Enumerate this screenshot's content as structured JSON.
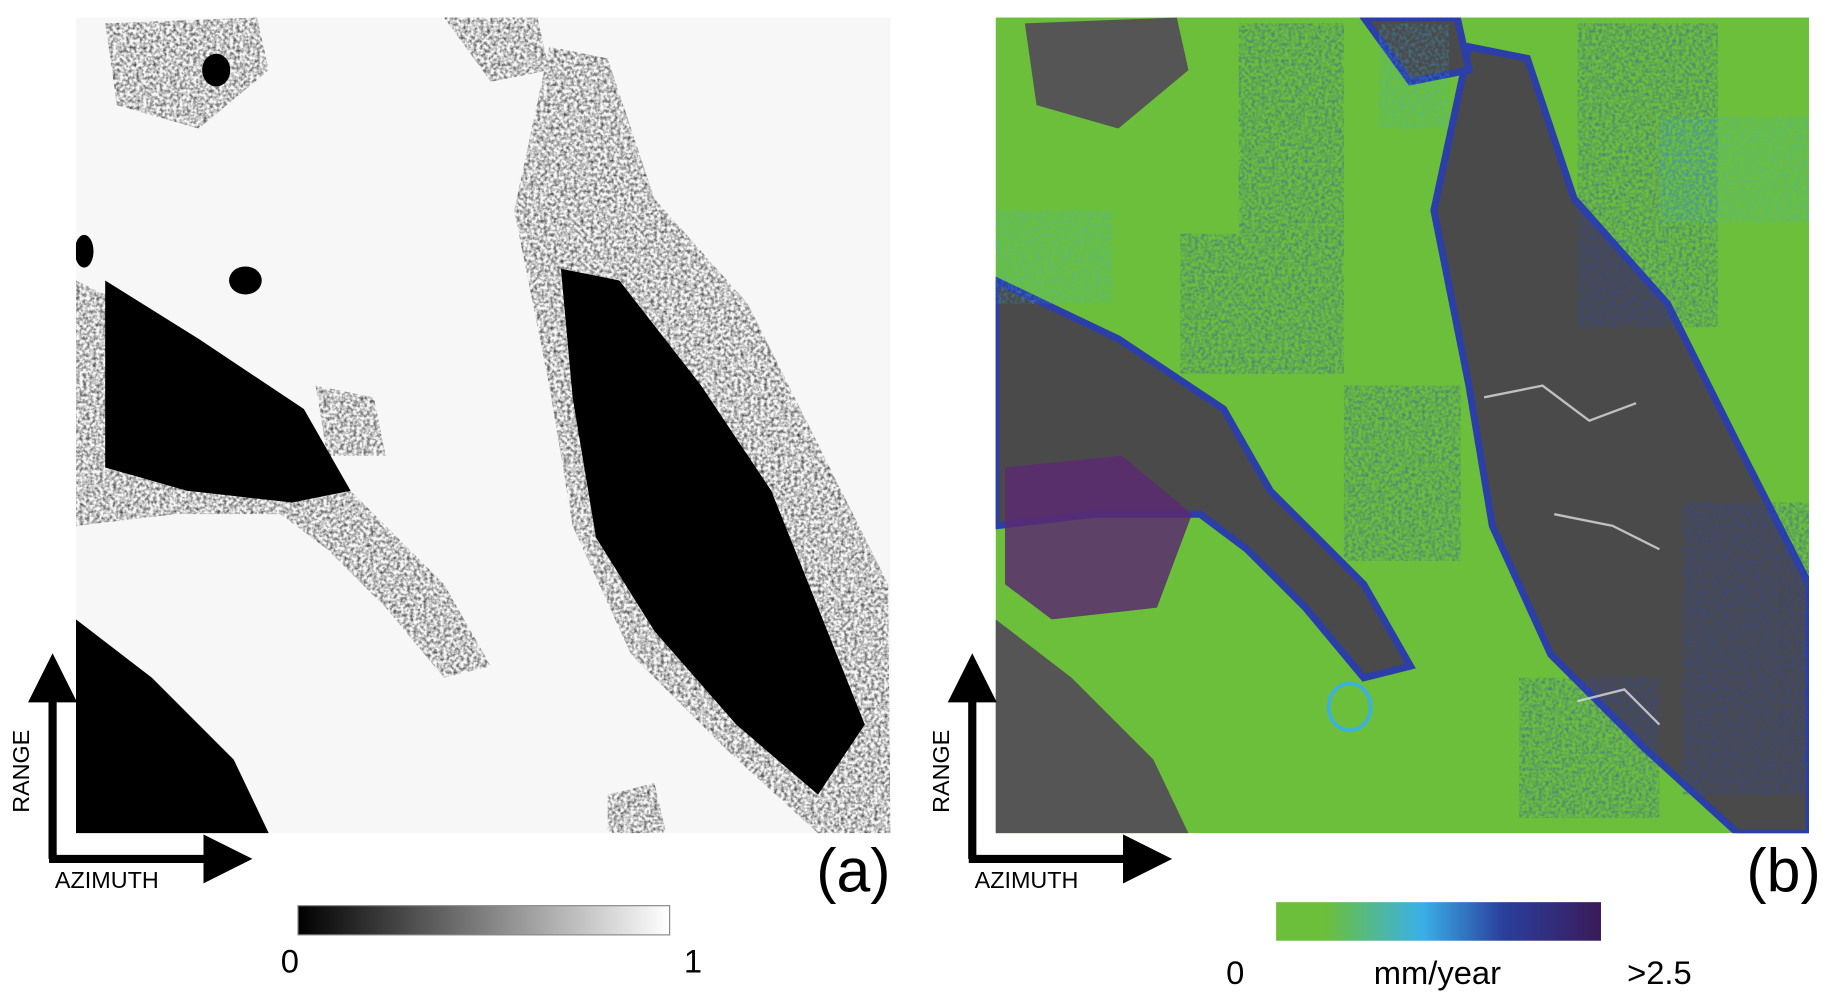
{
  "panels": [
    {
      "label": "(a)",
      "range_label": "RANGE",
      "azimuth_label": "AZIMUTH",
      "colorbar": {
        "ticks": [
          "0",
          "1"
        ]
      }
    },
    {
      "label": "(b)",
      "range_label": "RANGE",
      "azimuth_label": "AZIMUTH",
      "colorbar": {
        "ticks": [
          "0",
          ">2.5"
        ],
        "unit": "mm/year"
      }
    }
  ]
}
